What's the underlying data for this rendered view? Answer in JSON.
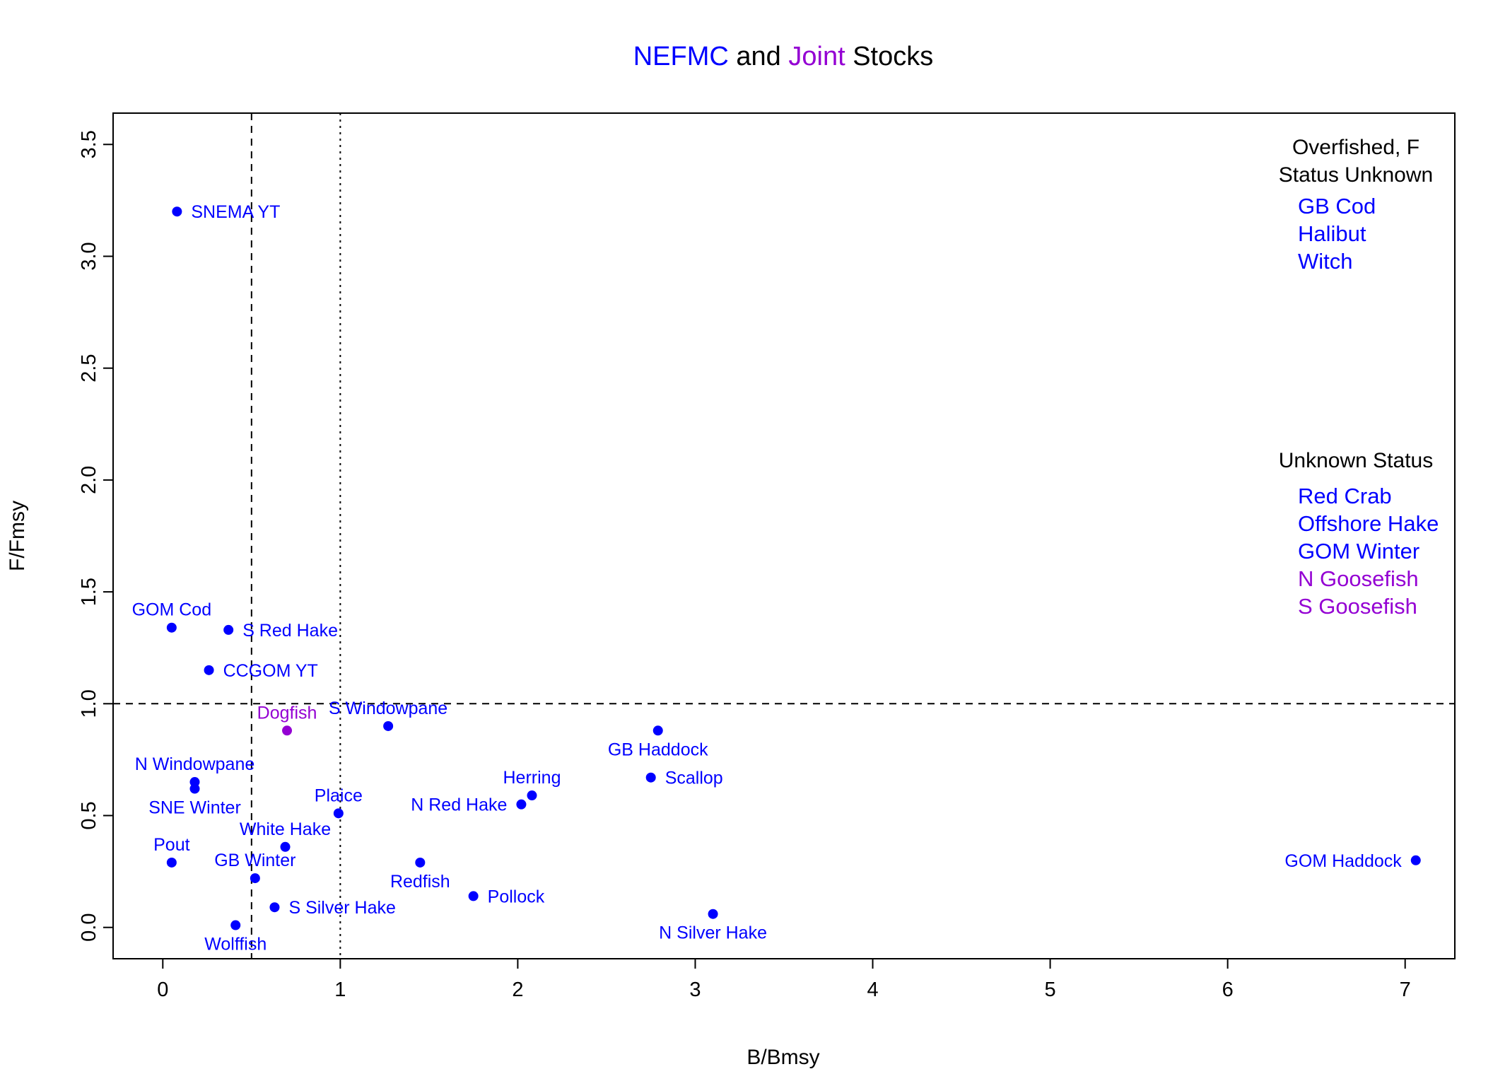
{
  "chart_data": {
    "type": "scatter",
    "title": {
      "parts": [
        {
          "text": "NEFMC",
          "color": "#0000ff"
        },
        {
          "text": " and ",
          "color": "#000000"
        },
        {
          "text": "Joint",
          "color": "#9400d3"
        },
        {
          "text": " Stocks",
          "color": "#000000"
        }
      ]
    },
    "xlabel": "B/Bmsy",
    "ylabel": "F/Fmsy",
    "xlim": [
      -0.28,
      7.28
    ],
    "ylim": [
      -0.14,
      3.64
    ],
    "x_ticks": [
      0,
      1,
      2,
      3,
      4,
      5,
      6,
      7
    ],
    "x_tick_labels": [
      "0",
      "1",
      "2",
      "3",
      "4",
      "5",
      "6",
      "7"
    ],
    "y_ticks": [
      0.0,
      0.5,
      1.0,
      1.5,
      2.0,
      2.5,
      3.0,
      3.5
    ],
    "y_tick_labels": [
      "0.0",
      "0.5",
      "1.0",
      "1.5",
      "2.0",
      "2.5",
      "3.0",
      "3.5"
    ],
    "grid": false,
    "reference_lines": [
      {
        "axis": "x",
        "value": 0.5,
        "style": "dashed"
      },
      {
        "axis": "x",
        "value": 1.0,
        "style": "dotted"
      },
      {
        "axis": "y",
        "value": 1.0,
        "style": "dashed"
      }
    ],
    "colors": {
      "nefmc": "#0000ff",
      "joint": "#9400d3"
    },
    "points": [
      {
        "label": "SNEMA YT",
        "x": 0.08,
        "y": 3.2,
        "group": "nefmc",
        "label_pos": "right"
      },
      {
        "label": "GOM Cod",
        "x": 0.05,
        "y": 1.34,
        "group": "nefmc",
        "label_pos": "above"
      },
      {
        "label": "S Red Hake",
        "x": 0.37,
        "y": 1.33,
        "group": "nefmc",
        "label_pos": "right"
      },
      {
        "label": "CCGOM YT",
        "x": 0.26,
        "y": 1.15,
        "group": "nefmc",
        "label_pos": "right"
      },
      {
        "label": "S Windowpane",
        "x": 1.27,
        "y": 0.9,
        "group": "nefmc",
        "label_pos": "above"
      },
      {
        "label": "Dogfish",
        "x": 0.7,
        "y": 0.88,
        "group": "joint",
        "label_pos": "above"
      },
      {
        "label": "GB Haddock",
        "x": 2.79,
        "y": 0.88,
        "group": "nefmc",
        "label_pos": "below"
      },
      {
        "label": "N Windowpane",
        "x": 0.18,
        "y": 0.65,
        "group": "nefmc",
        "label_pos": "above"
      },
      {
        "label": "SNE Winter",
        "x": 0.18,
        "y": 0.62,
        "group": "nefmc",
        "label_pos": "below"
      },
      {
        "label": "Scallop",
        "x": 2.75,
        "y": 0.67,
        "group": "nefmc",
        "label_pos": "right"
      },
      {
        "label": "Herring",
        "x": 2.08,
        "y": 0.59,
        "group": "nefmc",
        "label_pos": "above"
      },
      {
        "label": "N Red Hake",
        "x": 2.02,
        "y": 0.55,
        "group": "nefmc",
        "label_pos": "left"
      },
      {
        "label": "Plaice",
        "x": 0.99,
        "y": 0.51,
        "group": "nefmc",
        "label_pos": "above"
      },
      {
        "label": "White Hake",
        "x": 0.69,
        "y": 0.36,
        "group": "nefmc",
        "label_pos": "above"
      },
      {
        "label": "Pout",
        "x": 0.05,
        "y": 0.29,
        "group": "nefmc",
        "label_pos": "above"
      },
      {
        "label": "Redfish",
        "x": 1.45,
        "y": 0.29,
        "group": "nefmc",
        "label_pos": "below"
      },
      {
        "label": "GOM Haddock",
        "x": 7.06,
        "y": 0.3,
        "group": "nefmc",
        "label_pos": "left"
      },
      {
        "label": "GB Winter",
        "x": 0.52,
        "y": 0.22,
        "group": "nefmc",
        "label_pos": "above"
      },
      {
        "label": "Pollock",
        "x": 1.75,
        "y": 0.14,
        "group": "nefmc",
        "label_pos": "right"
      },
      {
        "label": "S Silver Hake",
        "x": 0.63,
        "y": 0.09,
        "group": "nefmc",
        "label_pos": "right"
      },
      {
        "label": "N Silver Hake",
        "x": 3.1,
        "y": 0.06,
        "group": "nefmc",
        "label_pos": "below"
      },
      {
        "label": "Wolffish",
        "x": 0.41,
        "y": 0.01,
        "group": "nefmc",
        "label_pos": "below"
      }
    ],
    "annotations": [
      {
        "heading": [
          "Overfished, F",
          "Status Unknown"
        ],
        "items": [
          {
            "text": "GB Cod",
            "group": "nefmc"
          },
          {
            "text": "Halibut",
            "group": "nefmc"
          },
          {
            "text": "Witch",
            "group": "nefmc"
          }
        ]
      },
      {
        "heading": [
          "Unknown Status"
        ],
        "items": [
          {
            "text": "Red Crab",
            "group": "nefmc"
          },
          {
            "text": "Offshore Hake",
            "group": "nefmc"
          },
          {
            "text": "GOM Winter",
            "group": "nefmc"
          },
          {
            "text": "N Goosefish",
            "group": "joint"
          },
          {
            "text": "S Goosefish",
            "group": "joint"
          }
        ]
      }
    ]
  }
}
